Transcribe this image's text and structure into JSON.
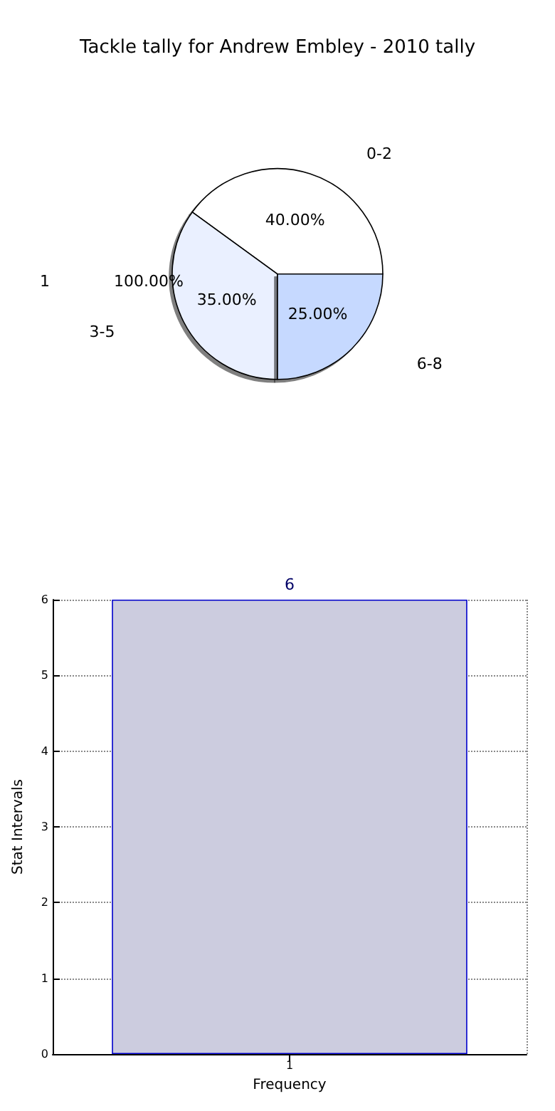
{
  "chart_data": [
    {
      "type": "pie",
      "title": "Tackle tally for Andrew Embley - 2010 tally",
      "categories": [
        "0-2",
        "3-5",
        "6-8"
      ],
      "values": [
        40,
        35,
        25
      ],
      "colors": [
        "#ffffff",
        "#eaf0ff",
        "#c6d9ff"
      ],
      "value_labels": [
        "40.00%",
        "35.00%",
        "25.00%"
      ],
      "annotations": [
        "1",
        "100.00%"
      ]
    },
    {
      "type": "bar",
      "categories": [
        "1"
      ],
      "values": [
        6
      ],
      "color": "#ccccdf",
      "xlabel": "Frequency",
      "ylabel": "Stat Intervals",
      "ylim": [
        0,
        6
      ],
      "yticks": [
        0,
        1,
        2,
        3,
        4,
        5,
        6
      ],
      "grid": true,
      "data_labels": true
    }
  ]
}
